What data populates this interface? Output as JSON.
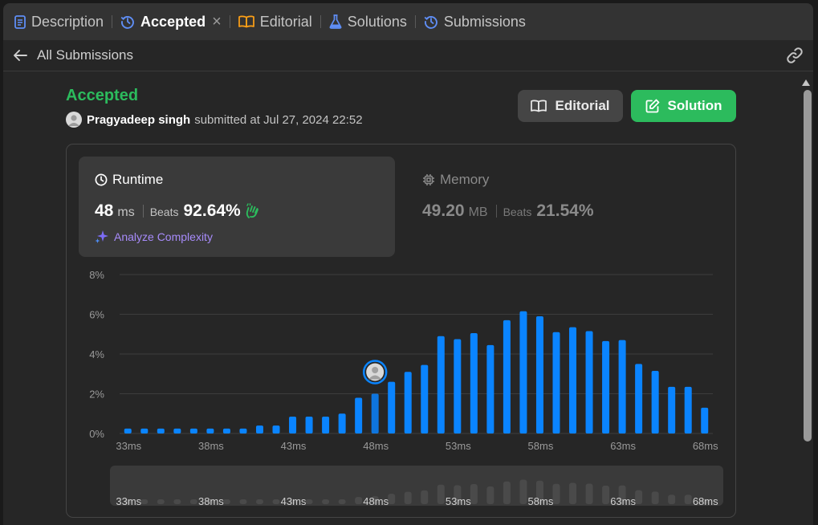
{
  "tabs": [
    {
      "name": "Description",
      "icon": "document-icon",
      "color": "#5f8ef5"
    },
    {
      "name": "Accepted",
      "icon": "history-icon",
      "color": "#5f8ef5",
      "active": true
    },
    {
      "name": "Editorial",
      "icon": "book-icon",
      "color": "#ffa116"
    },
    {
      "name": "Solutions",
      "icon": "flask-icon",
      "color": "#5f8ef5"
    },
    {
      "name": "Submissions",
      "icon": "history-icon",
      "color": "#5f8ef5"
    }
  ],
  "header": {
    "back_label": "All Submissions"
  },
  "submission": {
    "status": "Accepted",
    "user": "Pragyadeep singh",
    "submitted_text": "submitted at Jul 27, 2024 22:52"
  },
  "buttons": {
    "editorial": "Editorial",
    "solution": "Solution"
  },
  "runtime": {
    "title": "Runtime",
    "value": "48",
    "unit": "ms",
    "beats_label": "Beats",
    "beats": "92.64%",
    "analyze_label": "Analyze Complexity"
  },
  "memory": {
    "title": "Memory",
    "value": "49.20",
    "unit": "MB",
    "beats_label": "Beats",
    "beats": "21.54%"
  },
  "colors": {
    "accent_green": "#2cbb5d",
    "bar_blue": "#0a84ff",
    "bar_dim": "#4a4a4a"
  },
  "chart_data": {
    "type": "bar",
    "y_ticks": [
      "0%",
      "2%",
      "4%",
      "6%",
      "8%"
    ],
    "ylim": [
      0,
      8
    ],
    "x_tick_labels": [
      "33ms",
      "38ms",
      "43ms",
      "48ms",
      "53ms",
      "58ms",
      "63ms",
      "68ms"
    ],
    "x": [
      33,
      34,
      35,
      36,
      37,
      38,
      39,
      40,
      41,
      42,
      43,
      44,
      45,
      46,
      47,
      48,
      49,
      50,
      51,
      52,
      53,
      54,
      55,
      56,
      57,
      58,
      59,
      60,
      61,
      62,
      63,
      64,
      65,
      66,
      67,
      68
    ],
    "values": [
      0.25,
      0.25,
      0.25,
      0.25,
      0.25,
      0.25,
      0.25,
      0.25,
      0.4,
      0.4,
      0.85,
      0.85,
      0.85,
      1.0,
      1.8,
      2.0,
      2.6,
      3.1,
      3.45,
      4.9,
      4.75,
      5.05,
      4.45,
      5.7,
      6.15,
      5.9,
      5.1,
      5.35,
      5.15,
      4.65,
      4.7,
      3.5,
      3.15,
      2.35,
      2.35,
      1.3
    ],
    "highlight_x": 48,
    "grid": true
  }
}
